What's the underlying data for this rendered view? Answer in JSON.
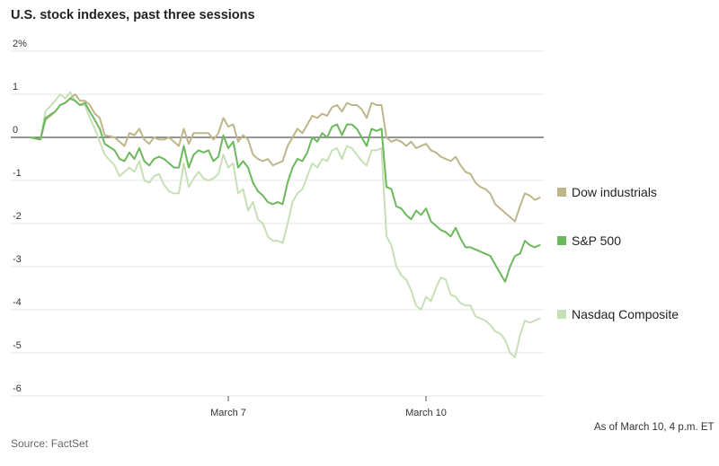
{
  "chart_data": {
    "type": "line",
    "title": "U.S. stock indexes, past three sessions",
    "xlabel": "",
    "ylabel": "",
    "ylim": [
      -6,
      2
    ],
    "y_ticks": [
      2,
      1,
      0,
      -1,
      -2,
      -3,
      -4,
      -5,
      -6
    ],
    "y_tick_labels": [
      "2%",
      "1",
      "0",
      "-1",
      "-2",
      "-3",
      "-4",
      "-5",
      "-6"
    ],
    "x_range": [
      0,
      120
    ],
    "x_ticks": [
      {
        "x": 40,
        "label": "March 7"
      },
      {
        "x": 80,
        "label": "March 10"
      }
    ],
    "grid": true,
    "legend": "right",
    "series": [
      {
        "name": "Dow industrials",
        "color": "#bfb58a",
        "points": [
          [
            0,
            0
          ],
          [
            2,
            -0.05
          ],
          [
            3,
            0.4
          ],
          [
            5,
            0.6
          ],
          [
            6,
            0.75
          ],
          [
            7,
            0.8
          ],
          [
            8,
            0.9
          ],
          [
            9,
            1.0
          ],
          [
            10,
            0.85
          ],
          [
            11,
            0.85
          ],
          [
            12,
            0.75
          ],
          [
            13,
            0.55
          ],
          [
            14,
            0.45
          ],
          [
            15,
            0.05
          ],
          [
            17,
            0.0
          ],
          [
            18,
            -0.1
          ],
          [
            19,
            -0.2
          ],
          [
            20,
            0.1
          ],
          [
            21,
            0.05
          ],
          [
            22,
            0.2
          ],
          [
            23,
            -0.05
          ],
          [
            24,
            -0.15
          ],
          [
            25,
            0.0
          ],
          [
            26,
            -0.05
          ],
          [
            27,
            -0.05
          ],
          [
            28,
            0.0
          ],
          [
            29,
            -0.1
          ],
          [
            30,
            -0.2
          ],
          [
            31,
            0.2
          ],
          [
            32,
            -0.15
          ],
          [
            33,
            0.1
          ],
          [
            34,
            0.1
          ],
          [
            35,
            0.1
          ],
          [
            36,
            0.1
          ],
          [
            37,
            -0.05
          ],
          [
            38,
            0.1
          ],
          [
            39,
            0.45
          ],
          [
            40,
            0.25
          ],
          [
            41,
            0.3
          ],
          [
            42,
            -0.1
          ],
          [
            43,
            0.05
          ],
          [
            44,
            -0.05
          ],
          [
            45,
            -0.4
          ],
          [
            46,
            -0.5
          ],
          [
            47,
            -0.55
          ],
          [
            48,
            -0.5
          ],
          [
            49,
            -0.65
          ],
          [
            50,
            -0.6
          ],
          [
            51,
            -0.55
          ],
          [
            52,
            -0.2
          ],
          [
            53,
            0.0
          ],
          [
            54,
            0.2
          ],
          [
            55,
            0.1
          ],
          [
            56,
            0.3
          ],
          [
            57,
            0.5
          ],
          [
            58,
            0.45
          ],
          [
            59,
            0.55
          ],
          [
            60,
            0.5
          ],
          [
            61,
            0.7
          ],
          [
            62,
            0.75
          ],
          [
            63,
            0.6
          ],
          [
            64,
            0.8
          ],
          [
            65,
            0.75
          ],
          [
            66,
            0.75
          ],
          [
            67,
            0.65
          ],
          [
            68,
            0.45
          ],
          [
            69,
            0.8
          ],
          [
            70,
            0.75
          ],
          [
            71,
            0.75
          ],
          [
            72,
            0.0
          ],
          [
            73,
            -0.1
          ],
          [
            74,
            -0.05
          ],
          [
            75,
            -0.1
          ],
          [
            76,
            -0.2
          ],
          [
            77,
            -0.1
          ],
          [
            78,
            -0.25
          ],
          [
            79,
            -0.2
          ],
          [
            80,
            -0.15
          ],
          [
            81,
            -0.3
          ],
          [
            82,
            -0.35
          ],
          [
            83,
            -0.45
          ],
          [
            84,
            -0.5
          ],
          [
            85,
            -0.55
          ],
          [
            86,
            -0.45
          ],
          [
            87,
            -0.65
          ],
          [
            88,
            -0.8
          ],
          [
            89,
            -0.85
          ],
          [
            90,
            -1.05
          ],
          [
            91,
            -1.15
          ],
          [
            92,
            -1.2
          ],
          [
            93,
            -1.3
          ],
          [
            94,
            -1.55
          ],
          [
            95,
            -1.65
          ],
          [
            96,
            -1.75
          ],
          [
            97,
            -1.85
          ],
          [
            98,
            -1.95
          ],
          [
            99,
            -1.6
          ],
          [
            100,
            -1.3
          ],
          [
            101,
            -1.35
          ],
          [
            102,
            -1.45
          ],
          [
            103,
            -1.4
          ]
        ]
      },
      {
        "name": "S&P 500",
        "color": "#6cb85c",
        "points": [
          [
            0,
            0
          ],
          [
            2,
            -0.05
          ],
          [
            3,
            0.45
          ],
          [
            5,
            0.6
          ],
          [
            6,
            0.75
          ],
          [
            7,
            0.8
          ],
          [
            8,
            0.9
          ],
          [
            9,
            0.85
          ],
          [
            10,
            0.75
          ],
          [
            11,
            0.8
          ],
          [
            12,
            0.6
          ],
          [
            13,
            0.4
          ],
          [
            14,
            0.2
          ],
          [
            15,
            -0.15
          ],
          [
            17,
            -0.3
          ],
          [
            18,
            -0.5
          ],
          [
            19,
            -0.55
          ],
          [
            20,
            -0.35
          ],
          [
            21,
            -0.5
          ],
          [
            22,
            -0.25
          ],
          [
            23,
            -0.55
          ],
          [
            24,
            -0.65
          ],
          [
            25,
            -0.5
          ],
          [
            26,
            -0.45
          ],
          [
            27,
            -0.5
          ],
          [
            28,
            -0.6
          ],
          [
            29,
            -0.7
          ],
          [
            30,
            -0.7
          ],
          [
            31,
            -0.2
          ],
          [
            32,
            -0.7
          ],
          [
            33,
            -0.4
          ],
          [
            34,
            -0.3
          ],
          [
            35,
            -0.35
          ],
          [
            36,
            -0.3
          ],
          [
            37,
            -0.55
          ],
          [
            38,
            -0.45
          ],
          [
            39,
            0.05
          ],
          [
            40,
            -0.25
          ],
          [
            41,
            -0.1
          ],
          [
            42,
            -0.7
          ],
          [
            43,
            -0.55
          ],
          [
            44,
            -0.7
          ],
          [
            45,
            -1.05
          ],
          [
            46,
            -1.25
          ],
          [
            47,
            -1.35
          ],
          [
            48,
            -1.5
          ],
          [
            49,
            -1.55
          ],
          [
            50,
            -1.5
          ],
          [
            51,
            -1.55
          ],
          [
            52,
            -1.05
          ],
          [
            53,
            -0.7
          ],
          [
            54,
            -0.5
          ],
          [
            55,
            -0.55
          ],
          [
            56,
            -0.35
          ],
          [
            57,
            0.0
          ],
          [
            58,
            -0.1
          ],
          [
            59,
            0.1
          ],
          [
            60,
            0.0
          ],
          [
            61,
            0.25
          ],
          [
            62,
            0.3
          ],
          [
            63,
            0.05
          ],
          [
            64,
            0.3
          ],
          [
            65,
            0.3
          ],
          [
            66,
            0.2
          ],
          [
            67,
            0.0
          ],
          [
            68,
            -0.2
          ],
          [
            69,
            0.2
          ],
          [
            70,
            0.15
          ],
          [
            71,
            0.2
          ],
          [
            72,
            -1.15
          ],
          [
            73,
            -1.2
          ],
          [
            74,
            -1.6
          ],
          [
            75,
            -1.65
          ],
          [
            76,
            -1.8
          ],
          [
            77,
            -1.9
          ],
          [
            78,
            -1.7
          ],
          [
            79,
            -1.8
          ],
          [
            80,
            -1.65
          ],
          [
            81,
            -1.95
          ],
          [
            82,
            -2.05
          ],
          [
            83,
            -2.15
          ],
          [
            84,
            -2.2
          ],
          [
            85,
            -2.3
          ],
          [
            86,
            -2.1
          ],
          [
            87,
            -2.35
          ],
          [
            88,
            -2.55
          ],
          [
            89,
            -2.55
          ],
          [
            90,
            -2.6
          ],
          [
            91,
            -2.65
          ],
          [
            92,
            -2.7
          ],
          [
            93,
            -2.75
          ],
          [
            94,
            -2.95
          ],
          [
            95,
            -3.15
          ],
          [
            96,
            -3.35
          ],
          [
            97,
            -3.0
          ],
          [
            98,
            -2.75
          ],
          [
            99,
            -2.7
          ],
          [
            100,
            -2.4
          ],
          [
            101,
            -2.5
          ],
          [
            102,
            -2.55
          ],
          [
            103,
            -2.5
          ]
        ]
      },
      {
        "name": "Nasdaq Composite",
        "color": "#c6e0b6",
        "points": [
          [
            0,
            0
          ],
          [
            2,
            -0.05
          ],
          [
            3,
            0.6
          ],
          [
            5,
            0.85
          ],
          [
            6,
            1.0
          ],
          [
            7,
            0.9
          ],
          [
            8,
            1.05
          ],
          [
            9,
            0.85
          ],
          [
            10,
            0.75
          ],
          [
            11,
            0.75
          ],
          [
            12,
            0.45
          ],
          [
            13,
            0.2
          ],
          [
            14,
            -0.1
          ],
          [
            15,
            -0.4
          ],
          [
            17,
            -0.65
          ],
          [
            18,
            -0.9
          ],
          [
            19,
            -0.8
          ],
          [
            20,
            -0.7
          ],
          [
            21,
            -0.8
          ],
          [
            22,
            -0.55
          ],
          [
            23,
            -1.0
          ],
          [
            24,
            -1.05
          ],
          [
            25,
            -0.9
          ],
          [
            26,
            -0.85
          ],
          [
            27,
            -1.1
          ],
          [
            28,
            -1.25
          ],
          [
            29,
            -1.3
          ],
          [
            30,
            -1.3
          ],
          [
            31,
            -0.6
          ],
          [
            32,
            -1.15
          ],
          [
            33,
            -0.95
          ],
          [
            34,
            -0.8
          ],
          [
            35,
            -0.95
          ],
          [
            36,
            -1.0
          ],
          [
            37,
            -0.95
          ],
          [
            38,
            -0.85
          ],
          [
            39,
            -0.4
          ],
          [
            40,
            -0.7
          ],
          [
            41,
            -0.6
          ],
          [
            42,
            -1.3
          ],
          [
            43,
            -1.2
          ],
          [
            44,
            -1.7
          ],
          [
            45,
            -1.5
          ],
          [
            46,
            -1.9
          ],
          [
            47,
            -2.0
          ],
          [
            48,
            -2.3
          ],
          [
            49,
            -2.4
          ],
          [
            50,
            -2.4
          ],
          [
            51,
            -2.45
          ],
          [
            52,
            -2.0
          ],
          [
            53,
            -1.5
          ],
          [
            54,
            -1.3
          ],
          [
            55,
            -1.2
          ],
          [
            56,
            -0.9
          ],
          [
            57,
            -0.6
          ],
          [
            58,
            -0.7
          ],
          [
            59,
            -0.5
          ],
          [
            60,
            -0.55
          ],
          [
            61,
            -0.3
          ],
          [
            62,
            -0.25
          ],
          [
            63,
            -0.5
          ],
          [
            64,
            -0.2
          ],
          [
            65,
            -0.25
          ],
          [
            66,
            -0.4
          ],
          [
            67,
            -0.55
          ],
          [
            68,
            -0.65
          ],
          [
            69,
            -0.3
          ],
          [
            70,
            -0.3
          ],
          [
            71,
            -0.25
          ],
          [
            72,
            -2.3
          ],
          [
            73,
            -2.5
          ],
          [
            74,
            -3.0
          ],
          [
            75,
            -3.2
          ],
          [
            76,
            -3.3
          ],
          [
            77,
            -3.55
          ],
          [
            78,
            -3.9
          ],
          [
            79,
            -4.0
          ],
          [
            80,
            -3.7
          ],
          [
            81,
            -3.8
          ],
          [
            82,
            -3.5
          ],
          [
            83,
            -3.25
          ],
          [
            84,
            -3.3
          ],
          [
            85,
            -3.65
          ],
          [
            86,
            -3.7
          ],
          [
            87,
            -3.85
          ],
          [
            88,
            -3.9
          ],
          [
            89,
            -3.9
          ],
          [
            90,
            -4.15
          ],
          [
            91,
            -4.2
          ],
          [
            92,
            -4.25
          ],
          [
            93,
            -4.35
          ],
          [
            94,
            -4.5
          ],
          [
            95,
            -4.55
          ],
          [
            96,
            -4.7
          ],
          [
            97,
            -5.0
          ],
          [
            98,
            -5.1
          ],
          [
            99,
            -4.6
          ],
          [
            100,
            -4.25
          ],
          [
            101,
            -4.3
          ],
          [
            102,
            -4.25
          ],
          [
            103,
            -4.2
          ]
        ]
      }
    ]
  },
  "footer": {
    "source": "Source: FactSet",
    "as_of": "As of March 10, 4 p.m. ET"
  }
}
